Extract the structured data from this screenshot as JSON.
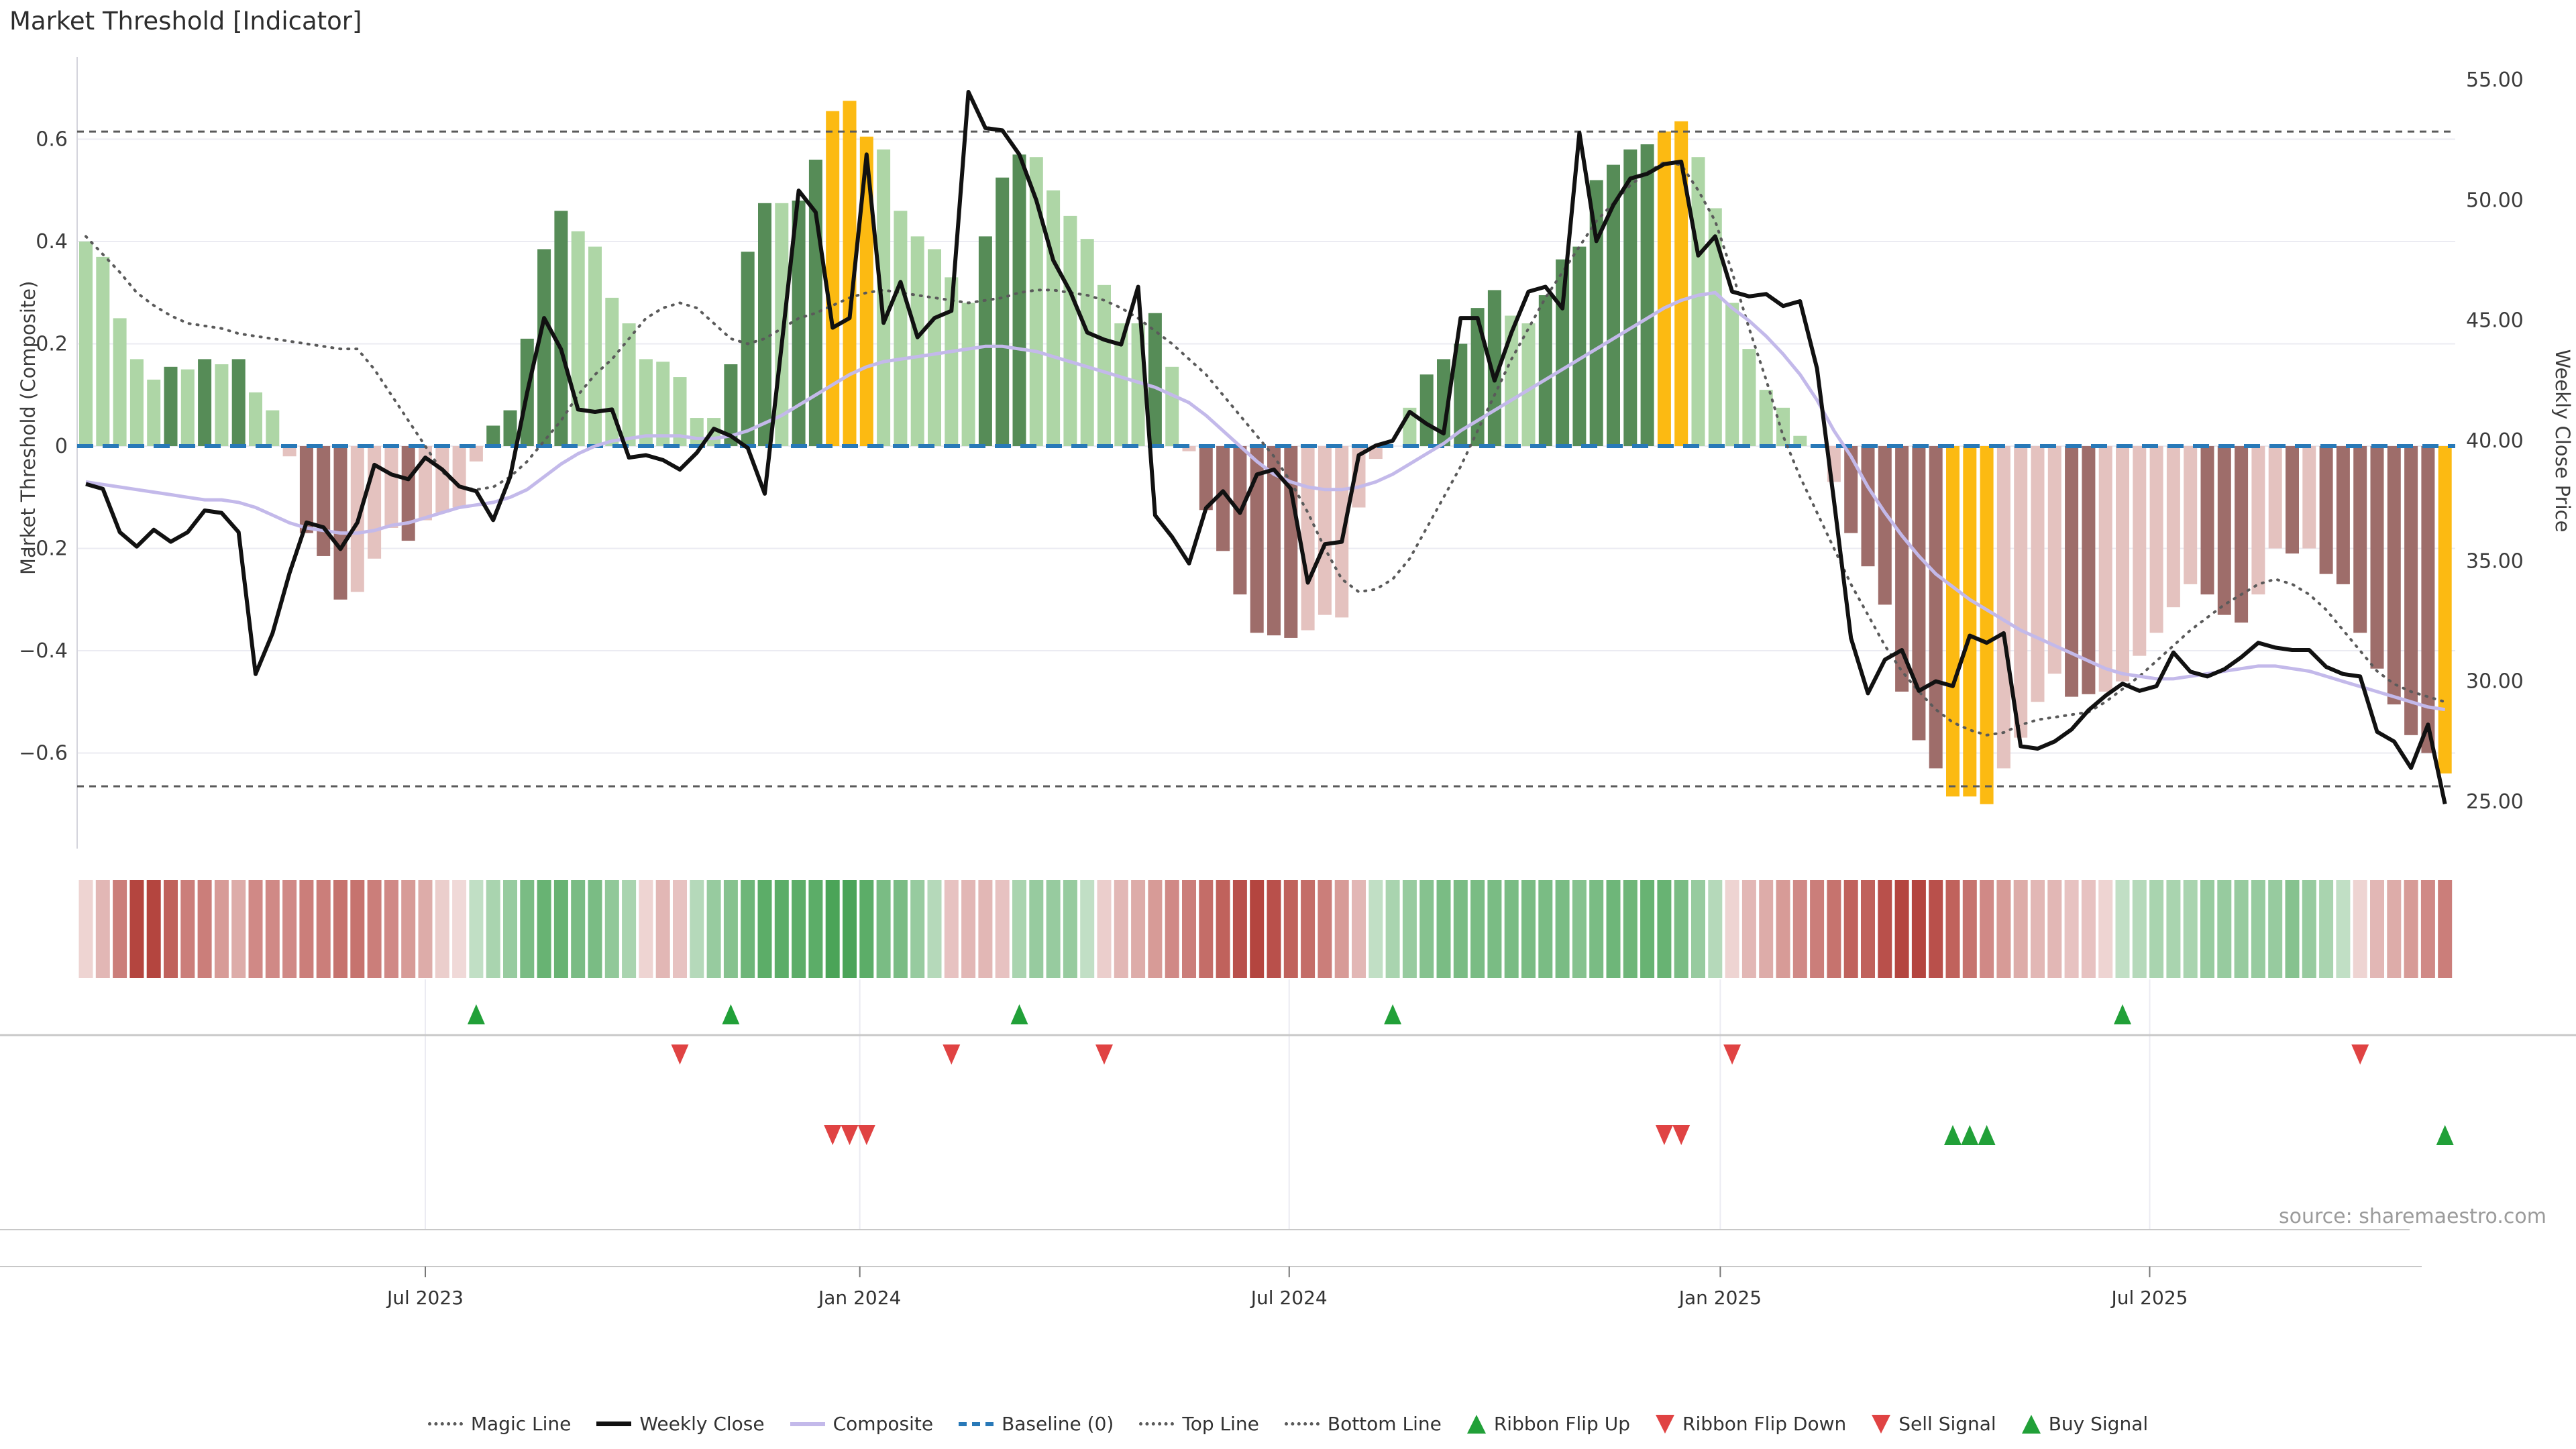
{
  "title": "Market Threshold [Indicator]",
  "source_text": "source: sharemaestro.com",
  "axes": {
    "left": {
      "title": "Market Threshold (Composite)",
      "tick_labels": [
        "0.6",
        "0.4",
        "0.2",
        "0",
        "−0.2",
        "−0.4",
        "−0.6"
      ],
      "tick_values": [
        0.6,
        0.4,
        0.2,
        0,
        -0.2,
        -0.4,
        -0.6
      ]
    },
    "right": {
      "title": "Weekly Close Price",
      "tick_labels": [
        "55.00",
        "50.00",
        "45.00",
        "40.00",
        "35.00",
        "30.00",
        "25.00"
      ],
      "tick_values": [
        55,
        50,
        45,
        40,
        35,
        30,
        25
      ]
    },
    "x": {
      "tick_labels": [
        "Jul 2023",
        "Jan 2024",
        "Jul 2024",
        "Jan 2025",
        "Jul 2025"
      ],
      "tick_weeks": [
        20.0,
        45.6,
        70.9,
        96.3,
        121.6
      ]
    }
  },
  "legend": [
    {
      "label": "Magic Line",
      "swatch": "dotted-gray"
    },
    {
      "label": "Weekly Close",
      "swatch": "line-black"
    },
    {
      "label": "Composite",
      "swatch": "line-purple"
    },
    {
      "label": "Baseline (0)",
      "swatch": "dash-blue"
    },
    {
      "label": "Top Line",
      "swatch": "dotted-gray"
    },
    {
      "label": "Bottom Line",
      "swatch": "dotted-gray"
    },
    {
      "label": "Ribbon Flip Up",
      "swatch": "tri-up"
    },
    {
      "label": "Ribbon Flip Down",
      "swatch": "tri-down"
    },
    {
      "label": "Sell Signal",
      "swatch": "tri-down"
    },
    {
      "label": "Buy Signal",
      "swatch": "tri-up"
    }
  ],
  "colors": {
    "bar_lightgreen": "#aed6a6",
    "bar_darkgreen": "#568c57",
    "bar_gold": "#fcba12",
    "bar_lightpink": "#e4c2bf",
    "bar_darkred": "#9e6d6a",
    "baseline": "#2879b8",
    "magic": "#5a5a5a",
    "composite": "#c3b9ea",
    "close": "#111111",
    "ribbon_green": "#3f9e4d",
    "ribbon_red": "#b4453f",
    "signal_green": "#21a038",
    "signal_red": "#e04343",
    "grid": "#ebebf2",
    "spine": "#d4d4dc",
    "separator": "#c8c8c8",
    "tick_text": "#3c3c3c"
  },
  "chart_data": {
    "type": "bar",
    "description": "Weekly market-threshold histogram (left axis) with weekly close price (right axis), composite and magic overlay lines, signal ribbon heatmap and signal markers.",
    "weeks": 140,
    "ylim_left": [
      -0.787,
      0.761
    ],
    "ylim_right": [
      23.0,
      56.0
    ],
    "top_line": 0.615,
    "bottom_line": -0.665,
    "baseline": 0,
    "bar_values": [
      0.4,
      0.37,
      0.25,
      0.17,
      0.13,
      0.155,
      0.15,
      0.17,
      0.16,
      0.17,
      0.105,
      0.07,
      -0.02,
      -0.17,
      -0.215,
      -0.3,
      -0.285,
      -0.22,
      -0.16,
      -0.185,
      -0.145,
      -0.13,
      -0.12,
      -0.03,
      0.04,
      0.07,
      0.21,
      0.385,
      0.46,
      0.42,
      0.39,
      0.29,
      0.24,
      0.17,
      0.165,
      0.135,
      0.055,
      0.055,
      0.16,
      0.38,
      0.475,
      0.475,
      0.48,
      0.56,
      0.655,
      0.675,
      0.605,
      0.58,
      0.46,
      0.41,
      0.385,
      0.33,
      0.28,
      0.41,
      0.525,
      0.57,
      0.565,
      0.5,
      0.45,
      0.405,
      0.315,
      0.24,
      0.24,
      0.26,
      0.155,
      -0.01,
      -0.125,
      -0.205,
      -0.29,
      -0.365,
      -0.37,
      -0.375,
      -0.36,
      -0.33,
      -0.335,
      -0.12,
      -0.025,
      0,
      0.075,
      0.14,
      0.17,
      0.2,
      0.27,
      0.305,
      0.255,
      0.24,
      0.295,
      0.365,
      0.39,
      0.52,
      0.55,
      0.58,
      0.59,
      0.615,
      0.635,
      0.565,
      0.465,
      0.28,
      0.19,
      0.11,
      0.075,
      0.02,
      0,
      -0.07,
      -0.17,
      -0.235,
      -0.31,
      -0.48,
      -0.575,
      -0.63,
      -0.685,
      -0.685,
      -0.7,
      -0.63,
      -0.57,
      -0.5,
      -0.445,
      -0.49,
      -0.485,
      -0.48,
      -0.46,
      -0.41,
      -0.365,
      -0.315,
      -0.27,
      -0.29,
      -0.33,
      -0.345,
      -0.29,
      -0.2,
      -0.21,
      -0.2,
      -0.25,
      -0.27,
      -0.365,
      -0.435,
      -0.505,
      -0.565,
      -0.6,
      -0.64
    ],
    "bar_colors": [
      "lg",
      "lg",
      "lg",
      "lg",
      "lg",
      "dg",
      "lg",
      "dg",
      "lg",
      "dg",
      "lg",
      "lg",
      "lp",
      "dr",
      "dr",
      "dr",
      "lp",
      "lp",
      "lp",
      "dr",
      "lp",
      "lp",
      "lp",
      "lp",
      "dg",
      "dg",
      "dg",
      "dg",
      "dg",
      "lg",
      "lg",
      "lg",
      "lg",
      "lg",
      "lg",
      "lg",
      "lg",
      "lg",
      "dg",
      "dg",
      "dg",
      "lg",
      "dg",
      "dg",
      "au",
      "au",
      "au",
      "lg",
      "lg",
      "lg",
      "lg",
      "lg",
      "lg",
      "dg",
      "dg",
      "dg",
      "lg",
      "lg",
      "lg",
      "lg",
      "lg",
      "lg",
      "lg",
      "dg",
      "lg",
      "lp",
      "dr",
      "dr",
      "dr",
      "dr",
      "dr",
      "dr",
      "lp",
      "lp",
      "lp",
      "lp",
      "lp",
      null,
      "lg",
      "dg",
      "dg",
      "dg",
      "dg",
      "dg",
      "lg",
      "lg",
      "dg",
      "dg",
      "dg",
      "dg",
      "dg",
      "dg",
      "dg",
      "au",
      "au",
      "lg",
      "lg",
      "lg",
      "lg",
      "lg",
      "lg",
      "lg",
      null,
      "lp",
      "dr",
      "dr",
      "dr",
      "dr",
      "dr",
      "dr",
      "au",
      "au",
      "au",
      "lp",
      "lp",
      "lp",
      "lp",
      "dr",
      "dr",
      "lp",
      "lp",
      "lp",
      "lp",
      "lp",
      "lp",
      "dr",
      "dr",
      "dr",
      "lp",
      "lp",
      "dr",
      "lp",
      "dr",
      "dr",
      "dr",
      "dr",
      "dr",
      "dr",
      "dr",
      "au"
    ],
    "weekly_close": [
      38.2,
      38.0,
      36.2,
      35.6,
      36.3,
      35.8,
      36.2,
      37.1,
      37.0,
      36.2,
      30.3,
      32.0,
      34.5,
      36.6,
      36.4,
      35.5,
      36.6,
      39.0,
      38.6,
      38.4,
      39.3,
      38.8,
      38.1,
      37.9,
      36.7,
      38.5,
      42.0,
      45.1,
      43.8,
      41.3,
      41.2,
      41.3,
      39.3,
      39.4,
      39.2,
      38.8,
      39.5,
      40.5,
      40.2,
      39.7,
      37.8,
      44.0,
      50.4,
      49.5,
      44.7,
      45.1,
      51.9,
      44.9,
      46.6,
      44.3,
      45.1,
      45.4,
      54.5,
      53.0,
      52.9,
      51.9,
      50.0,
      47.5,
      46.2,
      44.5,
      44.2,
      44.0,
      46.4,
      36.9,
      36.0,
      34.9,
      37.2,
      37.9,
      37.0,
      38.6,
      38.8,
      38.0,
      34.1,
      35.7,
      35.8,
      39.4,
      39.8,
      40.0,
      41.2,
      40.7,
      40.3,
      45.1,
      45.1,
      42.5,
      44.5,
      46.2,
      46.4,
      45.5,
      52.8,
      48.3,
      49.8,
      50.9,
      51.1,
      51.5,
      51.6,
      47.7,
      48.5,
      46.2,
      46.0,
      46.1,
      45.6,
      45.8,
      43.0,
      37.5,
      31.8,
      29.5,
      30.9,
      31.3,
      29.6,
      30.0,
      29.8,
      31.9,
      31.6,
      32.0,
      27.3,
      27.2,
      27.5,
      28.0,
      28.8,
      29.4,
      29.9,
      29.6,
      29.8,
      31.2,
      30.4,
      30.2,
      30.5,
      31.0,
      31.6,
      31.4,
      31.3,
      31.3,
      30.6,
      30.3,
      30.2,
      27.9,
      27.5,
      26.4,
      28.2,
      24.9
    ],
    "composite": [
      -0.07,
      -0.075,
      -0.08,
      -0.085,
      -0.09,
      -0.095,
      -0.1,
      -0.105,
      -0.105,
      -0.11,
      -0.12,
      -0.135,
      -0.15,
      -0.16,
      -0.165,
      -0.17,
      -0.17,
      -0.165,
      -0.155,
      -0.15,
      -0.14,
      -0.13,
      -0.12,
      -0.115,
      -0.11,
      -0.1,
      -0.085,
      -0.06,
      -0.035,
      -0.015,
      0.0,
      0.01,
      0.015,
      0.02,
      0.02,
      0.02,
      0.015,
      0.015,
      0.02,
      0.03,
      0.045,
      0.06,
      0.08,
      0.1,
      0.12,
      0.14,
      0.155,
      0.165,
      0.17,
      0.175,
      0.18,
      0.185,
      0.19,
      0.195,
      0.195,
      0.19,
      0.185,
      0.175,
      0.165,
      0.155,
      0.145,
      0.135,
      0.125,
      0.115,
      0.1,
      0.085,
      0.06,
      0.03,
      0.0,
      -0.03,
      -0.055,
      -0.07,
      -0.08,
      -0.085,
      -0.085,
      -0.08,
      -0.07,
      -0.055,
      -0.035,
      -0.015,
      0.005,
      0.03,
      0.05,
      0.07,
      0.09,
      0.11,
      0.13,
      0.15,
      0.17,
      0.19,
      0.21,
      0.23,
      0.25,
      0.27,
      0.285,
      0.295,
      0.3,
      0.27,
      0.245,
      0.215,
      0.18,
      0.14,
      0.09,
      0.03,
      -0.02,
      -0.08,
      -0.13,
      -0.175,
      -0.215,
      -0.25,
      -0.275,
      -0.3,
      -0.32,
      -0.34,
      -0.36,
      -0.375,
      -0.39,
      -0.405,
      -0.42,
      -0.435,
      -0.445,
      -0.45,
      -0.455,
      -0.455,
      -0.45,
      -0.445,
      -0.44,
      -0.435,
      -0.43,
      -0.43,
      -0.435,
      -0.44,
      -0.45,
      -0.46,
      -0.47,
      -0.48,
      -0.49,
      -0.5,
      -0.51,
      -0.515
    ],
    "magic": [
      0.41,
      0.375,
      0.34,
      0.3,
      0.275,
      0.255,
      0.24,
      0.235,
      0.23,
      0.22,
      0.215,
      0.21,
      0.205,
      0.2,
      0.195,
      0.19,
      0.19,
      0.15,
      0.1,
      0.05,
      0.0,
      -0.05,
      -0.08,
      -0.085,
      -0.08,
      -0.06,
      -0.03,
      0.01,
      0.05,
      0.1,
      0.14,
      0.17,
      0.21,
      0.25,
      0.27,
      0.28,
      0.27,
      0.24,
      0.21,
      0.2,
      0.21,
      0.23,
      0.25,
      0.26,
      0.275,
      0.29,
      0.3,
      0.305,
      0.3,
      0.295,
      0.29,
      0.285,
      0.28,
      0.285,
      0.29,
      0.3,
      0.305,
      0.305,
      0.3,
      0.295,
      0.285,
      0.27,
      0.25,
      0.225,
      0.2,
      0.17,
      0.14,
      0.1,
      0.06,
      0.02,
      -0.02,
      -0.07,
      -0.13,
      -0.2,
      -0.26,
      -0.285,
      -0.28,
      -0.26,
      -0.22,
      -0.16,
      -0.1,
      -0.04,
      0.03,
      0.1,
      0.17,
      0.23,
      0.29,
      0.34,
      0.39,
      0.44,
      0.475,
      0.51,
      0.535,
      0.555,
      0.55,
      0.5,
      0.44,
      0.34,
      0.23,
      0.13,
      0.02,
      -0.06,
      -0.13,
      -0.2,
      -0.27,
      -0.33,
      -0.39,
      -0.44,
      -0.48,
      -0.515,
      -0.54,
      -0.555,
      -0.565,
      -0.56,
      -0.545,
      -0.535,
      -0.53,
      -0.525,
      -0.52,
      -0.5,
      -0.475,
      -0.45,
      -0.42,
      -0.39,
      -0.36,
      -0.335,
      -0.31,
      -0.29,
      -0.27,
      -0.26,
      -0.27,
      -0.29,
      -0.32,
      -0.36,
      -0.4,
      -0.44,
      -0.465,
      -0.48,
      -0.49,
      -0.5
    ],
    "ribbon": [
      -0.5,
      -1,
      -2,
      -3,
      -3,
      -2.5,
      -2,
      -2,
      -1.5,
      -1.2,
      -1.8,
      -1.8,
      -1.8,
      -2,
      -2,
      -2.2,
      -2.2,
      -2,
      -1.8,
      -1.5,
      -1.2,
      -0.6,
      -0.4,
      0.8,
      1.2,
      1.5,
      2,
      2.3,
      2.3,
      2,
      2,
      1.6,
      1.2,
      -0.5,
      -1,
      -0.8,
      1,
      1.5,
      1.8,
      2.2,
      2.5,
      2.5,
      2.5,
      2.5,
      2.8,
      2.8,
      2.5,
      2,
      2,
      1.5,
      1,
      -0.8,
      -1,
      -1,
      -0.8,
      1.2,
      1.5,
      1.5,
      1.5,
      0.8,
      -0.6,
      -1,
      -1.2,
      -1.5,
      -1.8,
      -2,
      -2.3,
      -2.5,
      -2.8,
      -3,
      -2.8,
      -2.5,
      -2.3,
      -2,
      -1.5,
      -1,
      0.8,
      1.2,
      1.5,
      1.8,
      2,
      2,
      2,
      2,
      2,
      2,
      2,
      2,
      1.8,
      2,
      2.2,
      2.2,
      2.3,
      2.3,
      2,
      1.5,
      1,
      -0.5,
      -1,
      -1.2,
      -1.5,
      -1.8,
      -2,
      -2.2,
      -2.5,
      -2.5,
      -2.8,
      -3,
      -3,
      -2.8,
      -2.5,
      -2.2,
      -1.8,
      -1.5,
      -1.2,
      -1,
      -1,
      -0.8,
      -0.8,
      -0.5,
      0.8,
      1,
      1.2,
      1.2,
      1.2,
      1.5,
      1.5,
      1.5,
      1.5,
      1.5,
      1.8,
      1.5,
      1.2,
      0.8,
      -0.5,
      -1,
      -1.2,
      -1.5,
      -1.8,
      -2
    ],
    "signals": {
      "ribbon_flip_up_weeks": [
        23,
        38,
        55,
        77,
        120
      ],
      "ribbon_flip_down_weeks": [
        35,
        51,
        60,
        97,
        134
      ],
      "sell_weeks": [
        44,
        45,
        46,
        93,
        94
      ],
      "buy_weeks": [
        110,
        111,
        112,
        139
      ]
    }
  }
}
